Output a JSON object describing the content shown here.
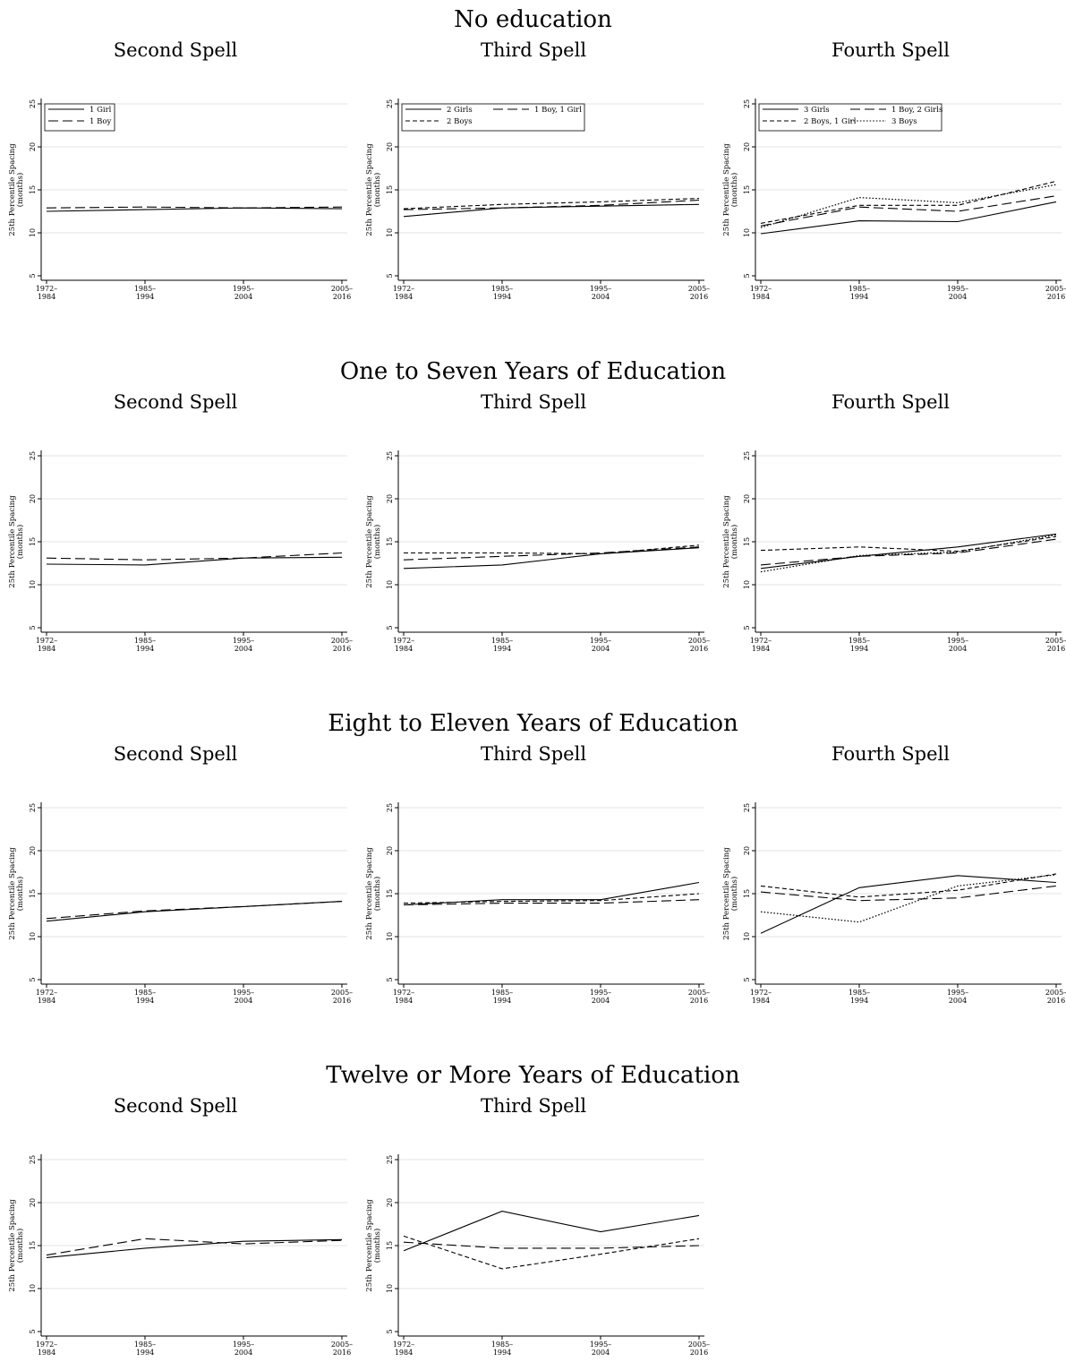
{
  "figure": {
    "ylabel_line1": "25th Percentile Spacing",
    "ylabel_line2": "(months)",
    "xticks": [
      [
        "1972–",
        "1984"
      ],
      [
        "1985–",
        "1994"
      ],
      [
        "1995–",
        "2004"
      ],
      [
        "2005–",
        "2016"
      ]
    ],
    "yticks": [
      5,
      10,
      15,
      20,
      25
    ]
  },
  "chart_data": [
    {
      "section": "No education",
      "panels": [
        {
          "title": "Second Spell",
          "type": "line",
          "x": [
            "1972–1984",
            "1985–1994",
            "1995–2004",
            "2005–2016"
          ],
          "ylim": [
            5,
            25
          ],
          "grid": true,
          "legend": "top-left",
          "series": [
            {
              "name": "1 Girl",
              "style": "solid",
              "values": [
                12.5,
                12.7,
                12.9,
                12.8
              ]
            },
            {
              "name": "1 Boy",
              "style": "longdash",
              "values": [
                12.9,
                13.0,
                12.9,
                13.0
              ]
            }
          ]
        },
        {
          "title": "Third Spell",
          "type": "line",
          "x": [
            "1972–1984",
            "1985–1994",
            "1995–2004",
            "2005–2016"
          ],
          "ylim": [
            5,
            25
          ],
          "grid": true,
          "legend": "top-left",
          "series": [
            {
              "name": "2 Girls",
              "style": "solid",
              "values": [
                11.9,
                12.9,
                13.1,
                13.3
              ]
            },
            {
              "name": "1 Boy, 1 Girl",
              "style": "longdash",
              "values": [
                12.7,
                12.9,
                13.2,
                13.8
              ]
            },
            {
              "name": "2 Boys",
              "style": "shortdash",
              "values": [
                12.8,
                13.3,
                13.6,
                14.0
              ]
            }
          ]
        },
        {
          "title": "Fourth Spell",
          "type": "line",
          "x": [
            "1972–1984",
            "1985–1994",
            "1995–2004",
            "2005–2016"
          ],
          "ylim": [
            5,
            25
          ],
          "grid": true,
          "legend": "top-left",
          "series": [
            {
              "name": "3 Girls",
              "style": "solid",
              "values": [
                9.9,
                11.4,
                11.3,
                13.6
              ]
            },
            {
              "name": "1 Boy, 2 Girls",
              "style": "longdash",
              "values": [
                10.8,
                13.0,
                12.5,
                14.3
              ]
            },
            {
              "name": "2 Boys, 1 Girl",
              "style": "shortdash",
              "values": [
                11.1,
                13.2,
                13.2,
                16.0
              ]
            },
            {
              "name": "3 Boys",
              "style": "dotted",
              "values": [
                10.6,
                14.1,
                13.5,
                15.6
              ]
            }
          ]
        }
      ]
    },
    {
      "section": "One to Seven Years of Education",
      "panels": [
        {
          "title": "Second Spell",
          "type": "line",
          "x": [
            "1972–1984",
            "1985–1994",
            "1995–2004",
            "2005–2016"
          ],
          "ylim": [
            5,
            25
          ],
          "grid": true,
          "series": [
            {
              "style": "solid",
              "values": [
                12.4,
                12.3,
                13.1,
                13.2
              ]
            },
            {
              "style": "longdash",
              "values": [
                13.1,
                12.9,
                13.1,
                13.7
              ]
            }
          ]
        },
        {
          "title": "Third Spell",
          "type": "line",
          "x": [
            "1972–1984",
            "1985–1994",
            "1995–2004",
            "2005–2016"
          ],
          "ylim": [
            5,
            25
          ],
          "grid": true,
          "series": [
            {
              "style": "solid",
              "values": [
                11.9,
                12.3,
                13.6,
                14.3
              ]
            },
            {
              "style": "longdash",
              "values": [
                12.9,
                13.3,
                13.7,
                14.4
              ]
            },
            {
              "style": "shortdash",
              "values": [
                13.7,
                13.7,
                13.6,
                14.6
              ]
            }
          ]
        },
        {
          "title": "Fourth Spell",
          "type": "line",
          "x": [
            "1972–1984",
            "1985–1994",
            "1995–2004",
            "2005–2016"
          ],
          "ylim": [
            5,
            25
          ],
          "grid": true,
          "series": [
            {
              "style": "solid",
              "values": [
                11.9,
                13.3,
                14.4,
                15.9
              ]
            },
            {
              "style": "longdash",
              "values": [
                12.3,
                13.3,
                13.7,
                15.3
              ]
            },
            {
              "style": "shortdash",
              "values": [
                14.0,
                14.4,
                13.9,
                15.6
              ]
            },
            {
              "style": "dotted",
              "values": [
                11.5,
                13.4,
                13.8,
                15.8
              ]
            }
          ]
        }
      ]
    },
    {
      "section": "Eight to Eleven Years of Education",
      "panels": [
        {
          "title": "Second Spell",
          "type": "line",
          "x": [
            "1972–1984",
            "1985–1994",
            "1995–2004",
            "2005–2016"
          ],
          "ylim": [
            5,
            25
          ],
          "grid": true,
          "series": [
            {
              "style": "solid",
              "values": [
                11.8,
                12.9,
                13.5,
                14.1
              ]
            },
            {
              "style": "longdash",
              "values": [
                12.1,
                13.0,
                13.5,
                14.1
              ]
            }
          ]
        },
        {
          "title": "Third Spell",
          "type": "line",
          "x": [
            "1972–1984",
            "1985–1994",
            "1995–2004",
            "2005–2016"
          ],
          "ylim": [
            5,
            25
          ],
          "grid": true,
          "series": [
            {
              "style": "solid",
              "values": [
                13.7,
                14.3,
                14.3,
                16.3
              ]
            },
            {
              "style": "longdash",
              "values": [
                13.7,
                13.9,
                13.9,
                14.3
              ]
            },
            {
              "style": "shortdash",
              "values": [
                13.9,
                14.1,
                14.2,
                15.0
              ]
            }
          ]
        },
        {
          "title": "Fourth Spell",
          "type": "line",
          "x": [
            "1972–1984",
            "1985–1994",
            "1995–2004",
            "2005–2016"
          ],
          "ylim": [
            5,
            25
          ],
          "grid": true,
          "series": [
            {
              "style": "solid",
              "values": [
                10.4,
                15.7,
                17.1,
                16.3
              ]
            },
            {
              "style": "longdash",
              "values": [
                15.2,
                14.2,
                14.5,
                15.9
              ]
            },
            {
              "style": "shortdash",
              "values": [
                15.9,
                14.6,
                15.4,
                17.3
              ]
            },
            {
              "style": "dotted",
              "values": [
                12.9,
                11.7,
                15.9,
                17.2
              ]
            }
          ]
        }
      ]
    },
    {
      "section": "Twelve or More Years of Education",
      "panels": [
        {
          "title": "Second Spell",
          "type": "line",
          "x": [
            "1972–1984",
            "1985–1994",
            "1995–2004",
            "2005–2016"
          ],
          "ylim": [
            5,
            25
          ],
          "grid": true,
          "series": [
            {
              "style": "solid",
              "values": [
                13.6,
                14.7,
                15.5,
                15.7
              ]
            },
            {
              "style": "longdash",
              "values": [
                13.9,
                15.8,
                15.2,
                15.6
              ]
            }
          ]
        },
        {
          "title": "Third Spell",
          "type": "line",
          "x": [
            "1972–1984",
            "1985–1994",
            "1995–2004",
            "2005–2016"
          ],
          "ylim": [
            5,
            25
          ],
          "grid": true,
          "series": [
            {
              "style": "solid",
              "values": [
                14.4,
                19.0,
                16.6,
                18.5
              ]
            },
            {
              "style": "longdash",
              "values": [
                15.4,
                14.7,
                14.7,
                15.0
              ]
            },
            {
              "style": "shortdash",
              "values": [
                16.1,
                12.3,
                14.0,
                15.8
              ]
            }
          ]
        }
      ]
    }
  ]
}
